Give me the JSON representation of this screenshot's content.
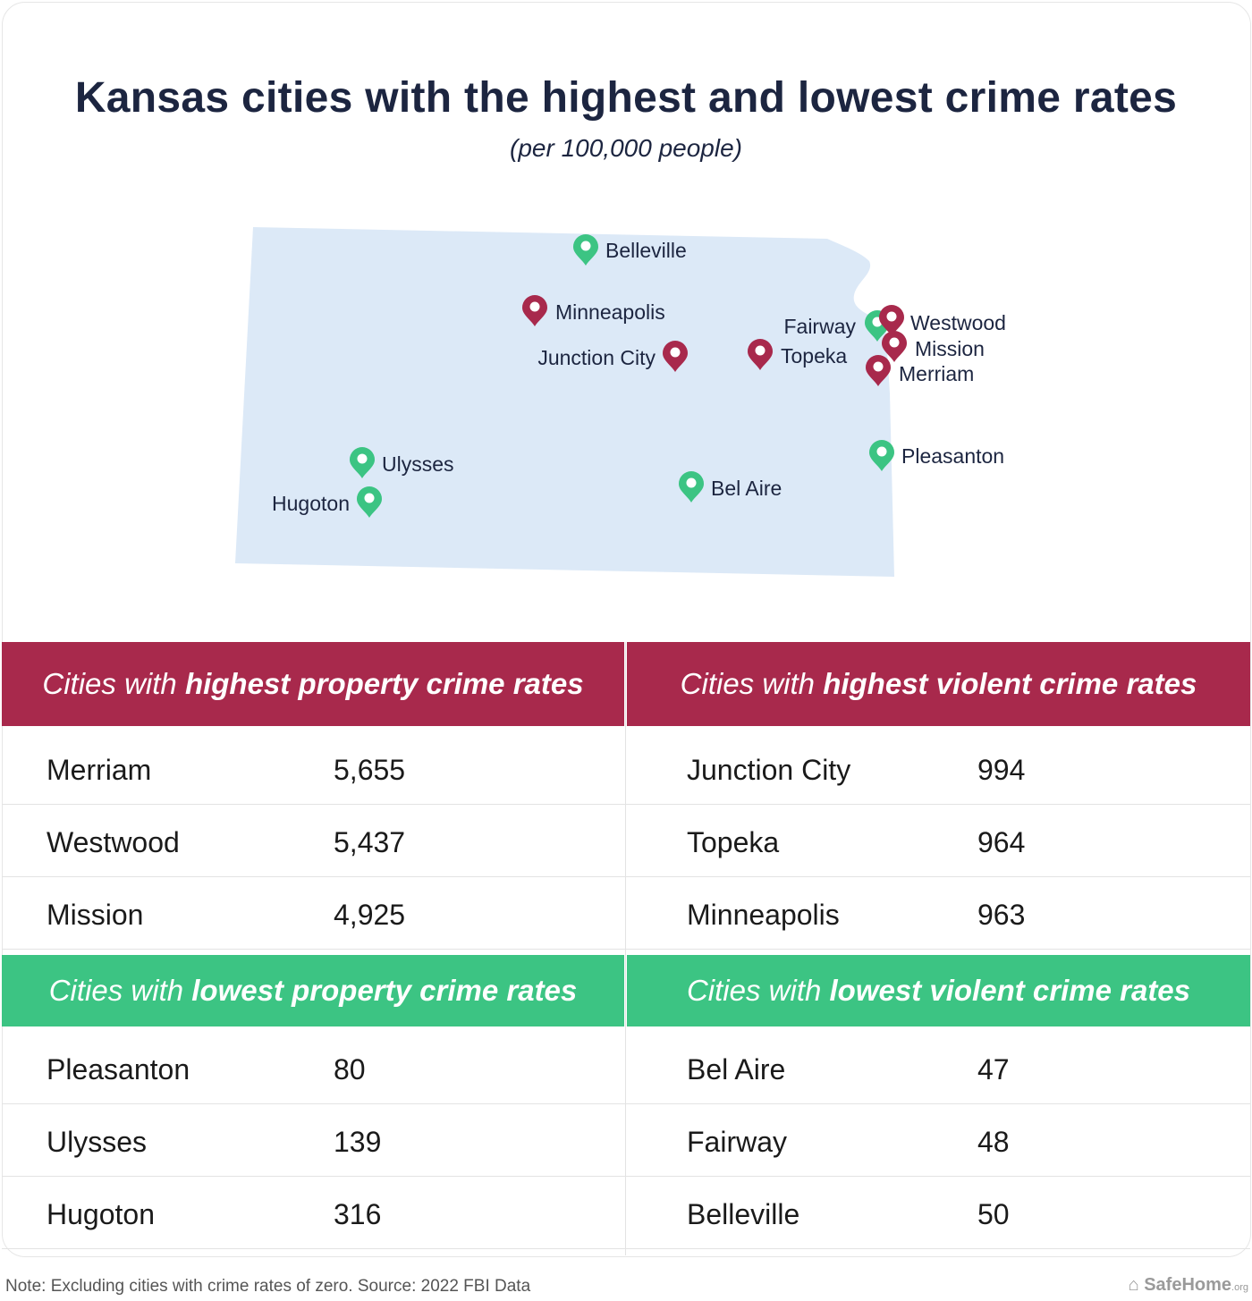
{
  "title": "Kansas cities with the highest and lowest crime rates",
  "subtitle": "(per 100,000 people)",
  "map": {
    "colors": {
      "state": "#dce9f7",
      "high": "#a8294c",
      "low": "#3cc483"
    },
    "pins": [
      {
        "name": "Belleville",
        "type": "low"
      },
      {
        "name": "Minneapolis",
        "type": "high"
      },
      {
        "name": "Junction City",
        "type": "high"
      },
      {
        "name": "Topeka",
        "type": "high"
      },
      {
        "name": "Fairway",
        "type": "low"
      },
      {
        "name": "Westwood",
        "type": "high"
      },
      {
        "name": "Mission",
        "type": "high"
      },
      {
        "name": "Merriam",
        "type": "high"
      },
      {
        "name": "Pleasanton",
        "type": "low"
      },
      {
        "name": "Ulysses",
        "type": "low"
      },
      {
        "name": "Hugoton",
        "type": "low"
      },
      {
        "name": "Bel Aire",
        "type": "low"
      }
    ]
  },
  "panels": {
    "high_property": {
      "prefix": "Cities with ",
      "bold": "highest property crime rates",
      "rows": [
        {
          "city": "Merriam",
          "value": "5,655"
        },
        {
          "city": "Westwood",
          "value": "5,437"
        },
        {
          "city": "Mission",
          "value": "4,925"
        }
      ]
    },
    "high_violent": {
      "prefix": "Cities with ",
      "bold": "highest violent crime rates",
      "rows": [
        {
          "city": "Junction City",
          "value": "994"
        },
        {
          "city": "Topeka",
          "value": "964"
        },
        {
          "city": "Minneapolis",
          "value": "963"
        }
      ]
    },
    "low_property": {
      "prefix": "Cities with ",
      "bold": "lowest property crime rates",
      "rows": [
        {
          "city": "Pleasanton",
          "value": "80"
        },
        {
          "city": "Ulysses",
          "value": "139"
        },
        {
          "city": "Hugoton",
          "value": "316"
        }
      ]
    },
    "low_violent": {
      "prefix": "Cities with ",
      "bold": "lowest violent crime rates",
      "rows": [
        {
          "city": "Bel Aire",
          "value": "47"
        },
        {
          "city": "Fairway",
          "value": "48"
        },
        {
          "city": "Belleville",
          "value": "50"
        }
      ]
    }
  },
  "footer": {
    "note": "Note: Excluding cities with crime rates of zero. Source: 2022 FBI Data",
    "brand": "SafeHome",
    "brand_suffix": ".org"
  }
}
